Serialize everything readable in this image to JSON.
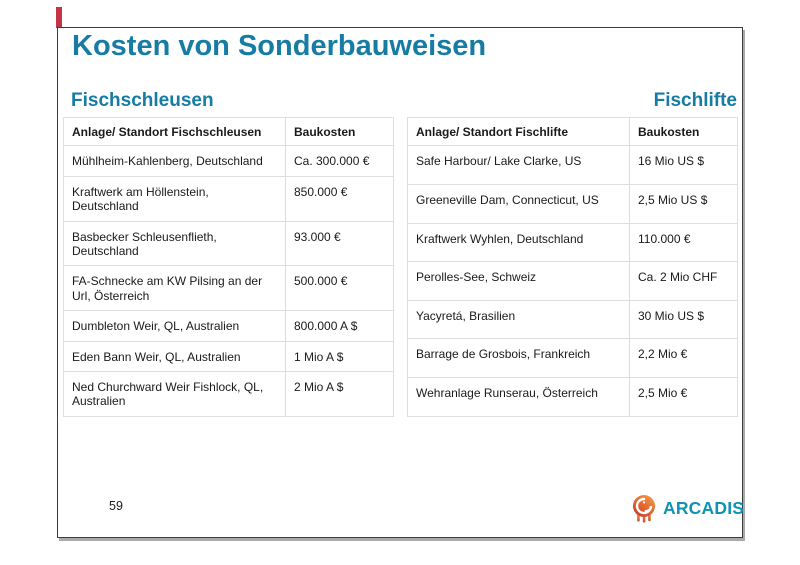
{
  "slide_title": "Kosten von Sonderbauweisen",
  "sections": {
    "fischschleusen": {
      "heading": "Fischschleusen",
      "columns": [
        "Anlage/ Standort Fischschleusen",
        "Baukosten"
      ],
      "rows": [
        [
          "Mühlheim-Kahlenberg, Deutschland",
          "Ca. 300.000 €"
        ],
        [
          "Kraftwerk am Höllenstein, Deutschland",
          "850.000 €"
        ],
        [
          "Basbecker Schleusenflieth, Deutschland",
          "93.000 €"
        ],
        [
          "FA-Schnecke am KW Pilsing an der Url, Österreich",
          "500.000 €"
        ],
        [
          "Dumbleton Weir, QL, Australien",
          "800.000 A $"
        ],
        [
          "Eden Bann Weir, QL, Australien",
          "1 Mio A $"
        ],
        [
          "Ned Churchward Weir Fishlock, QL, Australien",
          "2 Mio A $"
        ]
      ]
    },
    "fischlifte": {
      "heading": "Fischlifte",
      "columns": [
        "Anlage/ Standort Fischlifte",
        "Baukosten"
      ],
      "rows": [
        [
          "Safe Harbour/ Lake Clarke, US",
          "16 Mio US $"
        ],
        [
          "Greeneville Dam, Connecticut, US",
          "2,5 Mio US $"
        ],
        [
          "Kraftwerk Wyhlen, Deutschland",
          "110.000 €"
        ],
        [
          "Perolles-See, Schweiz",
          "Ca. 2 Mio CHF"
        ],
        [
          "Yacyretá, Brasilien",
          "30 Mio US $"
        ],
        [
          "Barrage de Grosbois, Frankreich",
          "2,2 Mio €"
        ],
        [
          "Wehranlage Runserau, Österreich",
          "2,5 Mio €"
        ]
      ]
    }
  },
  "footer": {
    "page_number": "59",
    "logo_text": "ARCADIS"
  },
  "colors": {
    "accent_teal": "#177ca4",
    "logo_teal": "#0f93b5",
    "logo_orange": "#ef8d3e",
    "logo_red": "#c23b2c",
    "accent_red_bar": "#c13544",
    "table_border": "#dedede",
    "text": "#1a1a1a"
  }
}
